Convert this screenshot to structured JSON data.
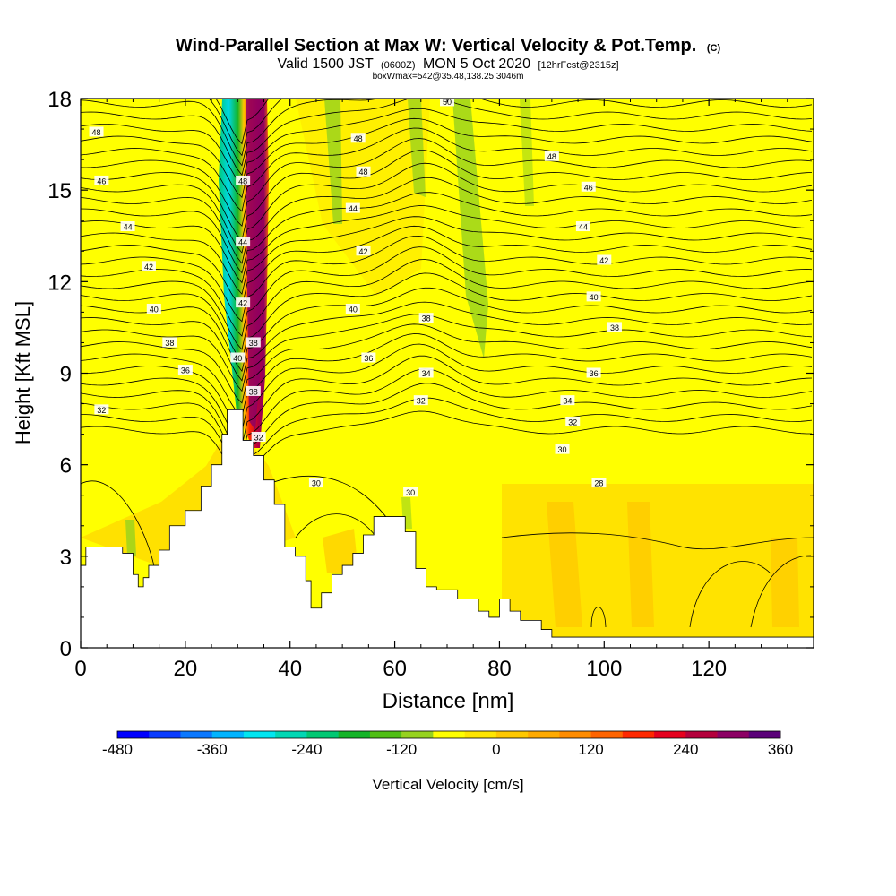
{
  "chart_data": {
    "type": "heatmap",
    "title": "Wind-Parallel Section at Max W: Vertical Velocity & Pot.Temp.",
    "title_mark": "(C)",
    "subtitle_main": "Valid 1500 JST",
    "subtitle_utc": "(0600Z)",
    "subtitle_date": "MON 5 Oct 2020",
    "subtitle_fcst": "[12hrFcst@2315z]",
    "subtitle2": "boxWmax=542@35.48,138.25,3046m",
    "xlabel": "Distance [nm]",
    "ylabel": "Height [Kft MSL]",
    "xlim": [
      0,
      140
    ],
    "ylim": [
      0,
      18
    ],
    "x_ticks": [
      "0",
      "20",
      "40",
      "60",
      "80",
      "100",
      "120"
    ],
    "y_ticks": [
      "0",
      "3",
      "6",
      "9",
      "12",
      "15",
      "18"
    ],
    "colorbar": {
      "label": "Vertical Velocity [cm/s]",
      "tick_labels": [
        "-480",
        "-360",
        "-240",
        "-120",
        "0",
        "120",
        "240",
        "360"
      ],
      "colors": [
        "#0000ff",
        "#0a3cff",
        "#0a78ff",
        "#00b4ff",
        "#00e6f0",
        "#00d7b4",
        "#00c873",
        "#14b428",
        "#50be14",
        "#96d21e",
        "#ffff00",
        "#ffe600",
        "#ffc800",
        "#ffaa00",
        "#ff8c00",
        "#ff6400",
        "#ff2800",
        "#e6001e",
        "#b4003c",
        "#8c0064",
        "#5a0078"
      ]
    },
    "contour_labels": [
      {
        "x": 3,
        "y": 16.9,
        "text": "48"
      },
      {
        "x": 4,
        "y": 15.3,
        "text": "46"
      },
      {
        "x": 9,
        "y": 13.8,
        "text": "44"
      },
      {
        "x": 13,
        "y": 12.5,
        "text": "42"
      },
      {
        "x": 14,
        "y": 11.1,
        "text": "40"
      },
      {
        "x": 17,
        "y": 10.0,
        "text": "38"
      },
      {
        "x": 20,
        "y": 9.1,
        "text": "36"
      },
      {
        "x": 4,
        "y": 7.8,
        "text": "32"
      },
      {
        "x": 31,
        "y": 15.3,
        "text": "48"
      },
      {
        "x": 31,
        "y": 13.3,
        "text": "44"
      },
      {
        "x": 31,
        "y": 11.3,
        "text": "42"
      },
      {
        "x": 33,
        "y": 10.0,
        "text": "38"
      },
      {
        "x": 30,
        "y": 9.5,
        "text": "40"
      },
      {
        "x": 33,
        "y": 8.4,
        "text": "38"
      },
      {
        "x": 34,
        "y": 6.9,
        "text": "32"
      },
      {
        "x": 53,
        "y": 16.7,
        "text": "48"
      },
      {
        "x": 54,
        "y": 15.6,
        "text": "48"
      },
      {
        "x": 52,
        "y": 14.4,
        "text": "44"
      },
      {
        "x": 54,
        "y": 13.0,
        "text": "42"
      },
      {
        "x": 52,
        "y": 11.1,
        "text": "40"
      },
      {
        "x": 55,
        "y": 9.5,
        "text": "36"
      },
      {
        "x": 70,
        "y": 17.9,
        "text": "50"
      },
      {
        "x": 66,
        "y": 10.8,
        "text": "38"
      },
      {
        "x": 66,
        "y": 9.0,
        "text": "34"
      },
      {
        "x": 65,
        "y": 8.1,
        "text": "32"
      },
      {
        "x": 45,
        "y": 5.4,
        "text": "30"
      },
      {
        "x": 63,
        "y": 5.1,
        "text": "30"
      },
      {
        "x": 90,
        "y": 16.1,
        "text": "48"
      },
      {
        "x": 97,
        "y": 15.1,
        "text": "46"
      },
      {
        "x": 96,
        "y": 13.8,
        "text": "44"
      },
      {
        "x": 100,
        "y": 12.7,
        "text": "42"
      },
      {
        "x": 98,
        "y": 11.5,
        "text": "40"
      },
      {
        "x": 102,
        "y": 10.5,
        "text": "38"
      },
      {
        "x": 98,
        "y": 9.0,
        "text": "36"
      },
      {
        "x": 93,
        "y": 8.1,
        "text": "34"
      },
      {
        "x": 94,
        "y": 7.4,
        "text": "32"
      },
      {
        "x": 92,
        "y": 6.5,
        "text": "30"
      },
      {
        "x": 99,
        "y": 5.4,
        "text": "28"
      }
    ]
  }
}
